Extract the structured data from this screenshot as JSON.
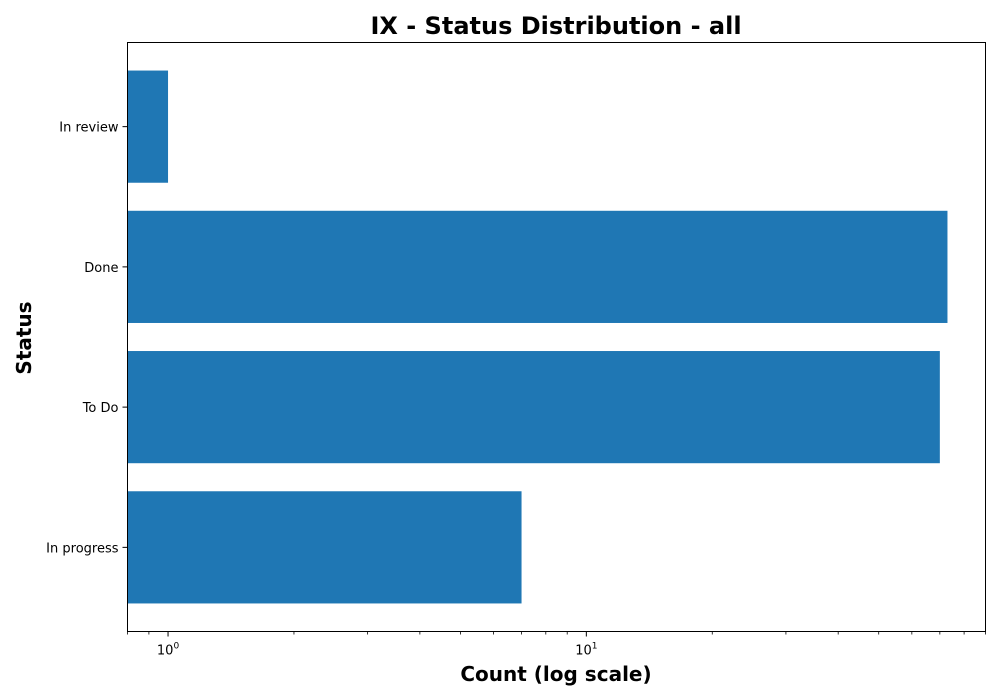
{
  "chart_data": {
    "type": "bar",
    "orientation": "horizontal",
    "title": "IX - Status Distribution - all",
    "xlabel": "Count (log scale)",
    "ylabel": "Status",
    "xscale": "log",
    "xlim": [
      0.8,
      90
    ],
    "x_ticks": [
      {
        "value": 1,
        "base": "10",
        "exponent": "0"
      },
      {
        "value": 10,
        "base": "10",
        "exponent": "1"
      }
    ],
    "categories": [
      "In progress",
      "To Do",
      "Done",
      "In review"
    ],
    "values": [
      7,
      70,
      73,
      1
    ],
    "bar_color": "#1f77b4",
    "grid": false,
    "legend": false
  }
}
